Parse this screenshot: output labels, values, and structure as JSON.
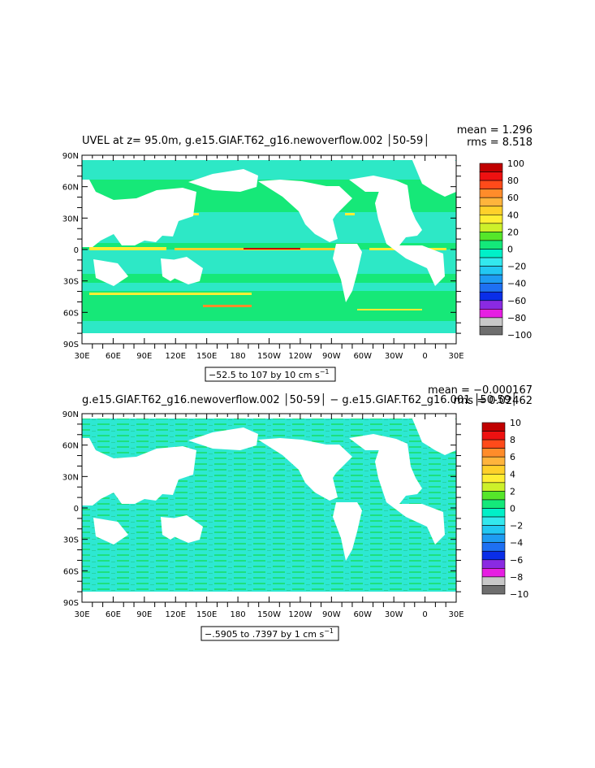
{
  "chart_data": [
    {
      "type": "heatmap",
      "title": "UVEL at z=  95.0m, g.e15.GIAF.T62_g16.newoverflow.002 │50-59│",
      "stats": {
        "mean": "mean = 1.296",
        "rms": "rms = 8.518"
      },
      "x_ticks": [
        "30E",
        "60E",
        "90E",
        "120E",
        "150E",
        "180",
        "150W",
        "120W",
        "90W",
        "60W",
        "30W",
        "0",
        "30E"
      ],
      "y_ticks": [
        "90N",
        "60N",
        "30N",
        "0",
        "30S",
        "60S",
        "90S"
      ],
      "colorbar": {
        "labels": [
          "100",
          "80",
          "60",
          "40",
          "20",
          "0",
          "−20",
          "−40",
          "−60",
          "−80",
          "−100"
        ],
        "colors": [
          "#c00000",
          "#ee1111",
          "#ff4a1a",
          "#ff8c2a",
          "#ffb43c",
          "#ffd02a",
          "#ffee33",
          "#cdf02a",
          "#55e62a",
          "#14e87a",
          "#00f0c8",
          "#33e8ee",
          "#22c8f2",
          "#1e9cf2",
          "#1e70f2",
          "#0a2ee8",
          "#8a2ae2",
          "#e61ee2",
          "#c8c8c8",
          "#6e6e6e"
        ]
      },
      "range_label": "−52.5 to 107 by 10 cm s",
      "range_exp": "−1"
    },
    {
      "type": "heatmap",
      "title": "g.e15.GIAF.T62_g16.newoverflow.002 │50-59│ − g.e15.GIAF.T62_g16.001 │50-59│",
      "stats": {
        "mean": "mean = −0.000167",
        "rms": "rms = 0.02462"
      },
      "x_ticks": [
        "30E",
        "60E",
        "90E",
        "120E",
        "150E",
        "180",
        "150W",
        "120W",
        "90W",
        "60W",
        "30W",
        "0",
        "30E"
      ],
      "y_ticks": [
        "90N",
        "60N",
        "30N",
        "0",
        "30S",
        "60S",
        "90S"
      ],
      "colorbar": {
        "labels": [
          "10",
          "8",
          "6",
          "4",
          "2",
          "0",
          "−2",
          "−4",
          "−6",
          "−8",
          "−10"
        ],
        "colors": [
          "#c00000",
          "#ee1111",
          "#ff4a1a",
          "#ff8c2a",
          "#ffb43c",
          "#ffd02a",
          "#ffee33",
          "#cdf02a",
          "#55e62a",
          "#14e87a",
          "#00f0c8",
          "#33e8ee",
          "#22c8f2",
          "#1e9cf2",
          "#1e70f2",
          "#0a2ee8",
          "#8a2ae2",
          "#e61ee2",
          "#c8c8c8",
          "#6e6e6e"
        ]
      },
      "range_label": "−.5905 to .7397 by 1 cm s",
      "range_exp": "−1"
    }
  ]
}
